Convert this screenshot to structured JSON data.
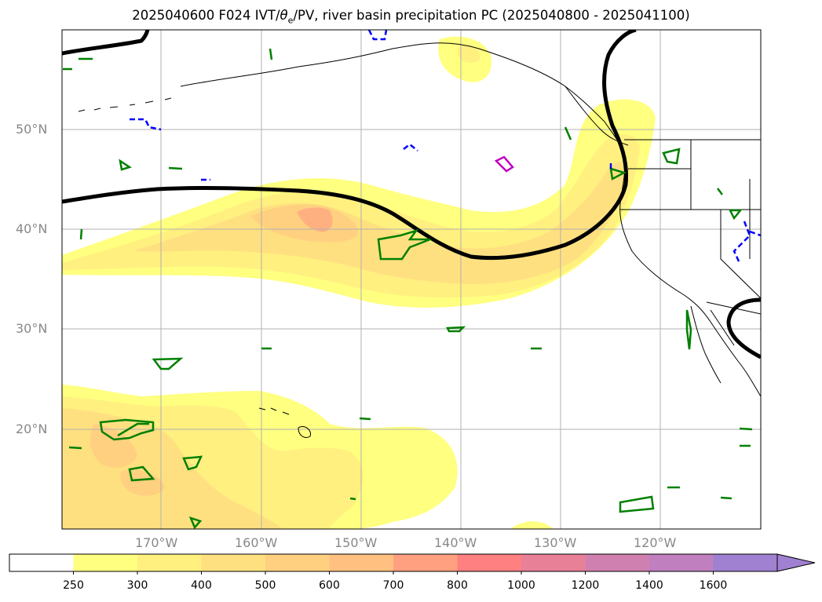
{
  "title": {
    "prefix": "2025040600 F024 IVT/",
    "theta": "θ",
    "theta_sub": "e",
    "suffix": "/PV, river basin precipitation PC (2025040800 - 2025041100)"
  },
  "map": {
    "lat_labels": [
      "50°N",
      "40°N",
      "30°N",
      "20°N"
    ],
    "lon_labels": [
      "170°W",
      "160°W",
      "150°W",
      "140°W",
      "130°W",
      "120°W"
    ],
    "colors": {
      "coast": "#000000",
      "grid": "#b0b0b0",
      "ivt_250": "#ffff80",
      "ivt_300": "#fff080",
      "ivt_400": "#ffe080",
      "ivt_500": "#ffd080",
      "ivt_600": "#ffb080",
      "pv_positive": "#008000",
      "pv_negative": "#0000ff",
      "theta_contour": "#000000",
      "magenta_contour": "#c000c0"
    }
  },
  "colorbar": {
    "ticks": [
      "250",
      "300",
      "400",
      "500",
      "600",
      "700",
      "800",
      "1000",
      "1200",
      "1400",
      "1600"
    ],
    "colors": [
      "#ffffff",
      "#ffff80",
      "#fff080",
      "#ffe080",
      "#ffd080",
      "#ffc080",
      "#ffa080",
      "#ff8080",
      "#e88098",
      "#d080b0",
      "#c080c0",
      "#a080d0"
    ]
  }
}
